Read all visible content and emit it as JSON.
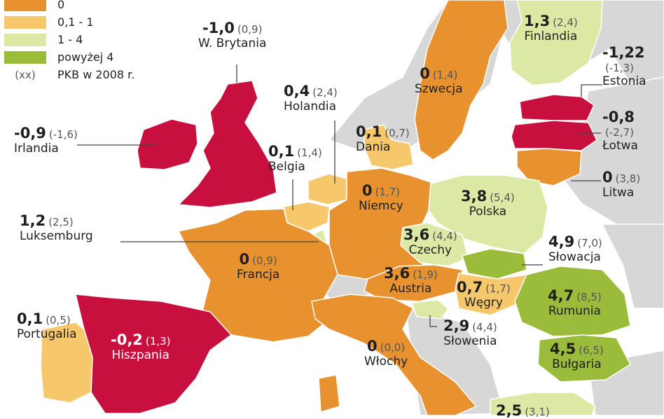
{
  "legend": {
    "items": [
      {
        "label": "0",
        "color": "#e8922f"
      },
      {
        "label": "0,1 - 1",
        "color": "#f6c76b"
      },
      {
        "label": "1 - 4",
        "color": "#dbe9a4"
      },
      {
        "label": "powyżej 4",
        "color": "#9bbb3a"
      }
    ],
    "note_symbol": "(xx)",
    "note_text": "PKB w 2008 r."
  },
  "colors": {
    "negative": "#c8103e",
    "zero": "#e8922f",
    "low": "#f6c76b",
    "mid": "#dbe9a4",
    "high": "#9bbb3a",
    "non_eu": "#d7d7d7",
    "sea": "#ffffff",
    "leader": "#444444"
  },
  "countries": [
    {
      "id": "wb",
      "name": "W. Brytania",
      "value": "-1,0",
      "prev": "(0,9)"
    },
    {
      "id": "irlandia",
      "name": "Irlandia",
      "value": "-0,9",
      "prev": "(-1,6)"
    },
    {
      "id": "holandia",
      "name": "Holandia",
      "value": "0,4",
      "prev": "(2,4)"
    },
    {
      "id": "belgia",
      "name": "Belgia",
      "value": "0,1",
      "prev": "(1,4)"
    },
    {
      "id": "dania",
      "name": "Dania",
      "value": "0,1",
      "prev": "(0,7)"
    },
    {
      "id": "szwecja",
      "name": "Szwecja",
      "value": "0",
      "prev": "(1,4)"
    },
    {
      "id": "finlandia",
      "name": "Finlandia",
      "value": "1,3",
      "prev": "(2,4)"
    },
    {
      "id": "estonia",
      "name": "Estonia",
      "value": "-1,22",
      "prev": "(-1,3)"
    },
    {
      "id": "lotwa",
      "name": "Łotwa",
      "value": "-0,8",
      "prev": "(-2,7)"
    },
    {
      "id": "litwa",
      "name": "Litwa",
      "value": "0",
      "prev": "(3,8)"
    },
    {
      "id": "luksemburg",
      "name": "Luksemburg",
      "value": "1,2",
      "prev": "(2,5)"
    },
    {
      "id": "niemcy",
      "name": "Niemcy",
      "value": "0",
      "prev": "(1,7)"
    },
    {
      "id": "polska",
      "name": "Polska",
      "value": "3,8",
      "prev": "(5,4)"
    },
    {
      "id": "czechy",
      "name": "Czechy",
      "value": "3,6",
      "prev": "(4,4)"
    },
    {
      "id": "slowacja",
      "name": "Słowacja",
      "value": "4,9",
      "prev": "(7,0)"
    },
    {
      "id": "francja",
      "name": "Francja",
      "value": "0",
      "prev": "(0,9)"
    },
    {
      "id": "austria",
      "name": "Austria",
      "value": "3,6",
      "prev": "(1,9)"
    },
    {
      "id": "wegry",
      "name": "Węgry",
      "value": "0,7",
      "prev": "(1,7)"
    },
    {
      "id": "rumunia",
      "name": "Rumunia",
      "value": "4,7",
      "prev": "(8,5)"
    },
    {
      "id": "portugalia",
      "name": "Portugalia",
      "value": "0,1",
      "prev": "(0,5)"
    },
    {
      "id": "hiszpania",
      "name": "Hiszpania",
      "value": "-0,2",
      "prev": "(1,3)"
    },
    {
      "id": "wlochy",
      "name": "Włochy",
      "value": "0",
      "prev": "(0,0)"
    },
    {
      "id": "slowenia",
      "name": "Słowenia",
      "value": "2,9",
      "prev": "(4,4)"
    },
    {
      "id": "bulgaria",
      "name": "Bułgaria",
      "value": "4,5",
      "prev": "(6,5)"
    },
    {
      "id": "grecja",
      "name": "",
      "value": "2,5",
      "prev": "(3,1)"
    }
  ]
}
